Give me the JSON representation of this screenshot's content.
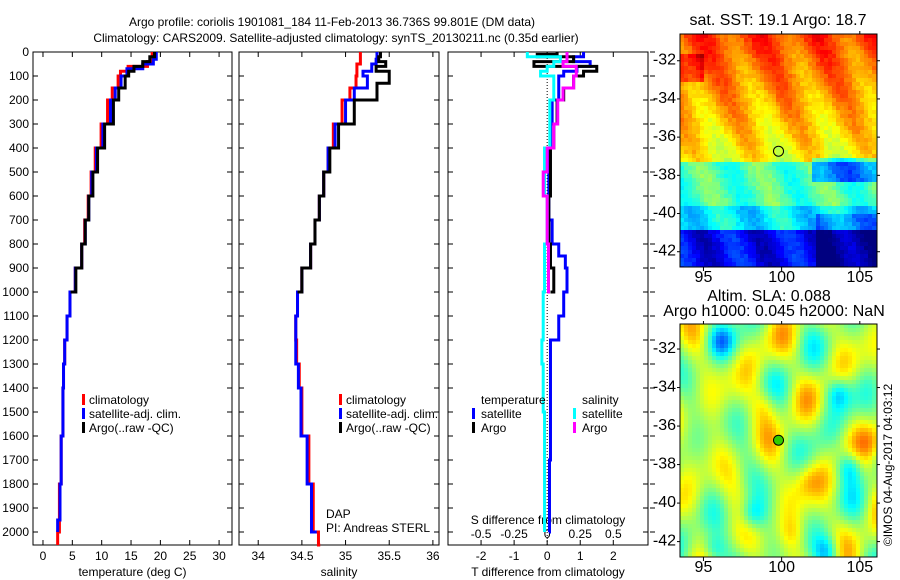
{
  "title": {
    "line1": "Argo profile: coriolis 1901081_184 11-Feb-2013 36.736S 99.801E (DM data)",
    "line2": "Climatology: CARS2009. Satellite-adjusted climatology: synTS_20130211.nc (0.35d earlier)"
  },
  "copyright": "©IMOS 04-Aug-2017 04:03:12",
  "colors": {
    "climatology": "#ff0000",
    "satellite": "#0000ff",
    "argo": "#000000",
    "sal_satellite": "#00ffff",
    "sal_argo": "#ff00ff"
  },
  "chart_data": [
    {
      "id": "temperature",
      "type": "line",
      "xlabel": "temperature (deg C)",
      "xlim": [
        -1.7,
        32.2
      ],
      "xticks": [
        "0",
        "5",
        "10",
        "15",
        "20",
        "25",
        "30"
      ],
      "xtick_values": [
        0,
        5,
        10,
        15,
        20,
        25,
        30
      ],
      "ylim": [
        2054,
        0
      ],
      "yticks": [
        "0",
        "100",
        "200",
        "300",
        "400",
        "500",
        "600",
        "700",
        "800",
        "900",
        "1000",
        "1100",
        "1200",
        "1300",
        "1400",
        "1500",
        "1600",
        "1700",
        "1800",
        "1900",
        "2000"
      ],
      "legend": [
        "climatology",
        "satellite-adj. clim.",
        "Argo(..raw -QC)"
      ],
      "series": [
        {
          "name": "climatology",
          "color": "#ff0000",
          "depth": [
            0,
            40,
            60,
            80,
            100,
            150,
            200,
            300,
            400,
            500,
            600,
            700,
            800,
            900,
            1000,
            1100,
            1200,
            1300,
            1400,
            1600,
            1800,
            2000,
            2054
          ],
          "values": [
            18.6,
            17.8,
            14.5,
            13.2,
            12.8,
            11.8,
            11.0,
            9.9,
            8.9,
            8.2,
            7.7,
            7.1,
            6.6,
            5.5,
            4.6,
            4.1,
            3.7,
            3.5,
            3.4,
            3.1,
            2.8,
            2.5,
            2.5
          ]
        },
        {
          "name": "satellite-adj. clim.",
          "color": "#0000ff",
          "depth": [
            0,
            30,
            50,
            70,
            100,
            150,
            200,
            300,
            400,
            500,
            600,
            700,
            800,
            900,
            1000,
            1100,
            1200,
            1300,
            1400,
            1600,
            1800,
            1950,
            2000
          ],
          "values": [
            19.3,
            18.8,
            17.0,
            14.3,
            13.3,
            12.3,
            11.5,
            10.2,
            9.1,
            8.3,
            7.8,
            7.2,
            6.6,
            5.5,
            4.6,
            4.1,
            3.7,
            3.5,
            3.4,
            3.1,
            2.9,
            2.5,
            2.5
          ]
        },
        {
          "name": "Argo(..raw -QC)",
          "color": "#000000",
          "depth": [
            0,
            20,
            40,
            60,
            80,
            100,
            150,
            200,
            300,
            400,
            500,
            600,
            700,
            800,
            900,
            1000
          ],
          "values": [
            19.0,
            18.2,
            17.0,
            15.5,
            14.6,
            14.0,
            12.9,
            12.0,
            10.5,
            9.3,
            8.5,
            7.8,
            7.2,
            6.6,
            5.6,
            4.7
          ]
        }
      ]
    },
    {
      "id": "salinity",
      "type": "line",
      "xlabel": "salinity",
      "xlim": [
        33.78,
        36.07
      ],
      "xticks": [
        "34",
        "34.5",
        "35",
        "35.5",
        "36"
      ],
      "xtick_values": [
        34,
        34.5,
        35,
        35.5,
        36
      ],
      "ylim": [
        2054,
        0
      ],
      "legend": [
        "climatology",
        "satellite-adj. clim.",
        "Argo(..raw -QC)"
      ],
      "annotation": [
        "DAP",
        "PI: Andreas STERL"
      ],
      "series": [
        {
          "name": "climatology",
          "color": "#ff0000",
          "depth": [
            0,
            50,
            100,
            150,
            200,
            300,
            400,
            500,
            600,
            700,
            800,
            900,
            1000,
            1100,
            1200,
            1300,
            1400,
            1600,
            1800,
            2000,
            2054
          ],
          "values": [
            35.17,
            35.13,
            35.12,
            35.05,
            34.96,
            34.86,
            34.8,
            34.75,
            34.7,
            34.65,
            34.6,
            34.5,
            34.45,
            34.43,
            34.44,
            34.47,
            34.5,
            34.58,
            34.63,
            34.69,
            34.71
          ]
        },
        {
          "name": "satellite-adj. clim.",
          "color": "#0000ff",
          "depth": [
            0,
            30,
            50,
            80,
            100,
            150,
            200,
            300,
            400,
            500,
            600,
            700,
            800,
            900,
            1000,
            1100,
            1200,
            1300,
            1400,
            1600,
            1800,
            2000
          ],
          "values": [
            35.36,
            35.35,
            35.3,
            35.2,
            35.25,
            35.1,
            35.0,
            34.88,
            34.8,
            34.75,
            34.7,
            34.65,
            34.6,
            34.5,
            34.45,
            34.43,
            34.43,
            34.46,
            34.49,
            34.56,
            34.61,
            34.67
          ]
        },
        {
          "name": "Argo(..raw -QC)",
          "color": "#000000",
          "depth": [
            0,
            20,
            40,
            60,
            80,
            100,
            130,
            200,
            300,
            400,
            500,
            600,
            700,
            800,
            900,
            1000
          ],
          "values": [
            35.4,
            35.38,
            35.46,
            35.35,
            35.5,
            35.5,
            35.36,
            35.1,
            34.92,
            34.82,
            34.75,
            34.7,
            34.65,
            34.6,
            34.5,
            34.45
          ]
        }
      ]
    },
    {
      "id": "difference",
      "type": "line",
      "xlabel": "T difference from climatology",
      "xlim": [
        -3.0,
        3.05
      ],
      "xticks": [
        "-2",
        "-1",
        "0",
        "1",
        "2"
      ],
      "xtick_values": [
        -2,
        -1,
        0,
        1,
        2
      ],
      "x2label": "S difference from climatology",
      "x2ticks": [
        "-0.5",
        "-0.25",
        "0",
        "0.25",
        "0.5"
      ],
      "x2tick_values": [
        -0.5,
        -0.25,
        0,
        0.25,
        0.5
      ],
      "ylim": [
        2054,
        0
      ],
      "legend": {
        "temperature": "temperature",
        "salinity": "salinity",
        "t_sat": "satellite",
        "t_argo": "Argo",
        "s_sat": "satellite",
        "s_argo": "Argo"
      },
      "series": [
        {
          "name": "T satellite",
          "color": "#0000ff",
          "unit": "T",
          "depth": [
            0,
            20,
            40,
            60,
            80,
            100,
            200,
            300,
            400,
            600,
            700,
            800,
            850,
            900,
            1000,
            1100,
            1200,
            1400,
            1700,
            2000
          ],
          "values": [
            1.1,
            0.8,
            1.3,
            0.9,
            0.5,
            0.35,
            0.15,
            0.1,
            0.05,
            0.05,
            0.15,
            0.35,
            0.55,
            0.6,
            0.5,
            0.35,
            0.1,
            0.1,
            0.07,
            0.05
          ]
        },
        {
          "name": "T Argo",
          "color": "#000000",
          "unit": "T",
          "depth": [
            0,
            10,
            20,
            40,
            60,
            80,
            100,
            150,
            200,
            300,
            400,
            600,
            800,
            900,
            1000
          ],
          "values": [
            0.3,
            -0.3,
            0.8,
            -0.4,
            1.5,
            1.1,
            0.8,
            0.5,
            0.3,
            0.2,
            0.1,
            0.05,
            0.1,
            0.2,
            0.1
          ]
        },
        {
          "name": "S satellite",
          "color": "#00ffff",
          "unit": "S",
          "depth": [
            0,
            20,
            40,
            60,
            80,
            100,
            200,
            400,
            600,
            800,
            1000,
            1200,
            1300,
            1500,
            2000
          ],
          "values": [
            -0.15,
            0.1,
            0.05,
            0.0,
            -0.05,
            0.05,
            0.02,
            -0.02,
            0.0,
            -0.02,
            -0.03,
            -0.04,
            -0.03,
            -0.02,
            -0.02
          ]
        },
        {
          "name": "S Argo",
          "color": "#ff00ff",
          "unit": "S",
          "depth": [
            0,
            40,
            60,
            100,
            150,
            200,
            300,
            400,
            500,
            600,
            800,
            1000
          ],
          "values": [
            0.15,
            0.12,
            0.22,
            0.2,
            0.12,
            0.08,
            0.05,
            0.0,
            -0.03,
            0.0,
            0.01,
            0.0
          ]
        }
      ]
    },
    {
      "id": "sst-map",
      "type": "heatmap",
      "title": "sat. SST: 19.1 Argo: 18.7",
      "xlim": [
        93.5,
        106.1
      ],
      "ylim": [
        -42.8,
        -30.6
      ],
      "xticks": [
        "95",
        "100",
        "105"
      ],
      "xtick_values": [
        95,
        100,
        105
      ],
      "yticks": [
        "-32",
        "-34",
        "-36",
        "-38",
        "-40",
        "-42"
      ],
      "ytick_values": [
        -32,
        -34,
        -36,
        -38,
        -40,
        -42
      ],
      "marker": {
        "lon": 99.801,
        "lat": -36.736
      }
    },
    {
      "id": "sla-map",
      "type": "heatmap",
      "title": "Altim. SLA: 0.088",
      "subtitle": "Argo h1000: 0.045 h2000: NaN",
      "xlim": [
        93.5,
        106.1
      ],
      "ylim": [
        -42.8,
        -30.7
      ],
      "xticks": [
        "95",
        "100",
        "105"
      ],
      "xtick_values": [
        95,
        100,
        105
      ],
      "yticks": [
        "-32",
        "-34",
        "-36",
        "-38",
        "-40",
        "-42"
      ],
      "ytick_values": [
        -32,
        -34,
        -36,
        -38,
        -40,
        -42
      ],
      "marker": {
        "lon": 99.801,
        "lat": -36.736
      }
    }
  ]
}
